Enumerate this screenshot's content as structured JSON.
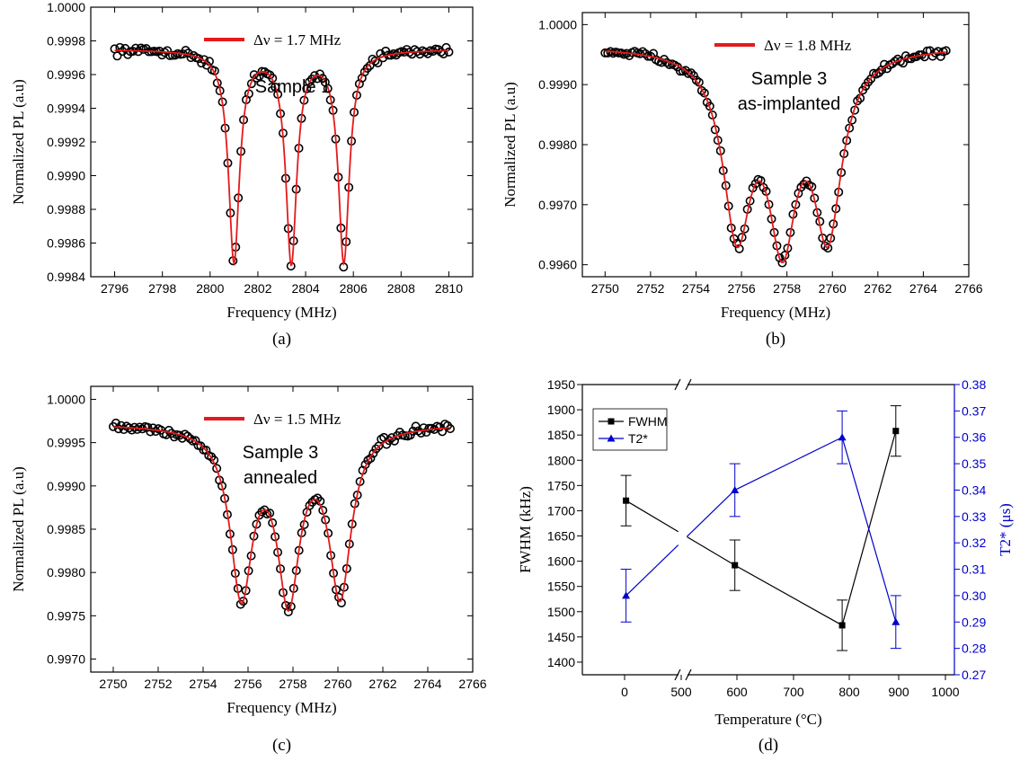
{
  "chart_data": [
    {
      "type": "scatter",
      "panel_label": "(a)",
      "xlabel": "Frequency (MHz)",
      "ylabel": "Normalized PL (a.u)",
      "xlim": [
        2795,
        2811
      ],
      "ylim": [
        0.9984,
        1.0
      ],
      "xticks": [
        2796,
        2798,
        2800,
        2802,
        2804,
        2806,
        2808,
        2810
      ],
      "yticks": [
        0.9984,
        0.9986,
        0.9988,
        0.999,
        0.9992,
        0.9994,
        0.9996,
        0.9998,
        1.0
      ],
      "ytick_labels": [
        "0.9984",
        "0.9986",
        "0.9988",
        "0.9990",
        "0.9992",
        "0.9994",
        "0.9996",
        "0.9998",
        "1.0000"
      ],
      "legend": "Δν = 1.7 MHz",
      "annotation": [
        "Sample 1"
      ],
      "fit": {
        "base": 0.99975,
        "centers": [
          2801.0,
          2803.4,
          2805.6
        ],
        "depth": 0.00125,
        "width": 0.55,
        "tilt": 0.0,
        "x0": 2796,
        "x1": 2810
      }
    },
    {
      "type": "scatter",
      "panel_label": "(b)",
      "xlabel": "Frequency (MHz)",
      "ylabel": "Normalized PL (a.u)",
      "xlim": [
        2749,
        2766
      ],
      "ylim": [
        0.9958,
        1.0002
      ],
      "xticks": [
        2750,
        2752,
        2754,
        2756,
        2758,
        2760,
        2762,
        2764,
        2766
      ],
      "yticks": [
        0.996,
        0.997,
        0.998,
        0.999,
        1.0
      ],
      "ytick_labels": [
        "0.9960",
        "0.9970",
        "0.9980",
        "0.9990",
        "1.0000"
      ],
      "legend": "Δν = 1.8 MHz",
      "annotation": [
        "Sample 3",
        "as-implanted"
      ],
      "fit": {
        "base": 0.99965,
        "centers": [
          2755.8,
          2757.8,
          2759.8
        ],
        "depth": 0.0029,
        "width": 1.5,
        "tilt": 0.0,
        "x0": 2750,
        "x1": 2765
      }
    },
    {
      "type": "scatter",
      "panel_label": "(c)",
      "xlabel": "Frequency (MHz)",
      "ylabel": "Normalized PL (a.u)",
      "xlim": [
        2749,
        2766
      ],
      "ylim": [
        0.99685,
        1.00015
      ],
      "xticks": [
        2750,
        2752,
        2754,
        2756,
        2758,
        2760,
        2762,
        2764,
        2766
      ],
      "yticks": [
        0.997,
        0.9975,
        0.998,
        0.9985,
        0.999,
        0.9995,
        1.0
      ],
      "ytick_labels": [
        "0.9970",
        "0.9975",
        "0.9980",
        "0.9985",
        "0.9990",
        "0.9995",
        "1.0000"
      ],
      "legend": "Δν = 1.5 MHz",
      "annotation": [
        "Sample 3",
        "annealed"
      ],
      "fit": {
        "base": 0.99972,
        "centers": [
          2755.7,
          2757.8,
          2760.1
        ],
        "depth": 0.0019,
        "width": 1.2,
        "tilt": 0.0,
        "x0": 2750,
        "x1": 2765
      }
    },
    {
      "type": "line",
      "panel_label": "(d)",
      "xlabel": "Temperature (°C)",
      "ylabel": "FWHM (kHz)",
      "y2label": "T2* (μs)",
      "xticks": [
        0,
        500,
        600,
        700,
        800,
        900,
        1000
      ],
      "yticks": [
        1400,
        1450,
        1500,
        1550,
        1600,
        1650,
        1700,
        1750,
        1800,
        1850,
        1900,
        1950
      ],
      "y2ticks": [
        0.27,
        0.28,
        0.29,
        0.3,
        0.31,
        0.32,
        0.33,
        0.34,
        0.35,
        0.36,
        0.37,
        0.38
      ],
      "ylim": [
        1375,
        1950
      ],
      "y2lim": [
        0.27,
        0.38
      ],
      "axis_break": "between 0 and 500",
      "series": [
        {
          "name": "FWHM",
          "color": "#000000",
          "marker": "square",
          "x": [
            25,
            600,
            800,
            900
          ],
          "y": [
            1720,
            1592,
            1473,
            1858
          ],
          "err": [
            50,
            50,
            50,
            50
          ]
        },
        {
          "name": "T2*",
          "color": "#0000cc",
          "marker": "triangle",
          "x": [
            25,
            600,
            800,
            900
          ],
          "y": [
            0.3,
            0.34,
            0.36,
            0.29
          ],
          "err": [
            0.01,
            0.01,
            0.01,
            0.01
          ]
        }
      ]
    }
  ]
}
